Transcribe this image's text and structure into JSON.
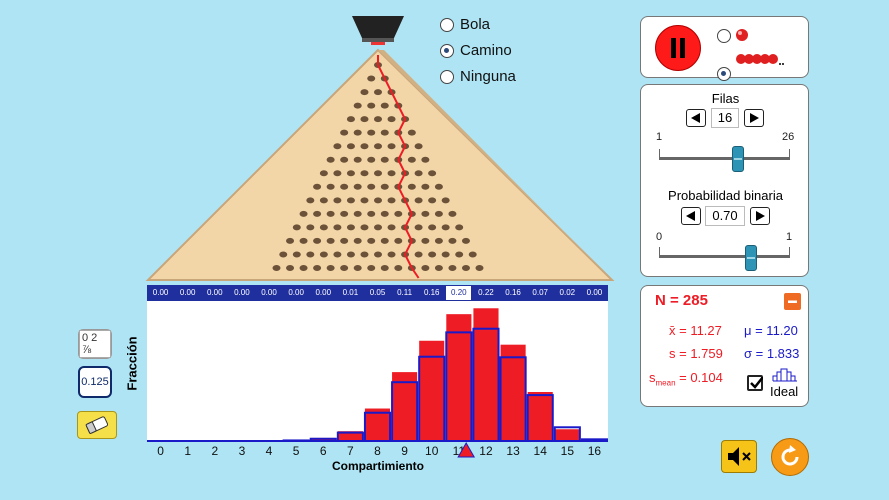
{
  "path_options": {
    "items": [
      {
        "label": "Bola",
        "selected": false
      },
      {
        "label": "Camino",
        "selected": true
      },
      {
        "label": "Ninguna",
        "selected": false
      }
    ]
  },
  "board": {
    "rows": 16,
    "color": "#f3d6a8"
  },
  "fractions": [
    "0.00",
    "0.00",
    "0.00",
    "0.00",
    "0.00",
    "0.00",
    "0.00",
    "0.01",
    "0.05",
    "0.11",
    "0.16",
    "0.20",
    "0.22",
    "0.16",
    "0.07",
    "0.02",
    "0.00"
  ],
  "chart_data": {
    "type": "bar",
    "categories": [
      "0",
      "1",
      "2",
      "3",
      "4",
      "5",
      "6",
      "7",
      "8",
      "9",
      "10",
      "11",
      "12",
      "13",
      "14",
      "15",
      "16"
    ],
    "series": [
      {
        "name": "observed",
        "values": [
          0,
          0,
          0,
          0,
          0,
          0.003,
          0.011,
          0.035,
          0.116,
          0.246,
          0.358,
          0.453,
          0.474,
          0.344,
          0.175,
          0.042,
          0.007
        ],
        "color": "#ee1c25"
      },
      {
        "name": "ideal",
        "values": [
          0,
          0,
          0,
          0,
          0,
          0.002,
          0.008,
          0.03,
          0.101,
          0.21,
          0.301,
          0.388,
          0.401,
          0.299,
          0.164,
          0.049,
          0.006
        ],
        "color": "#1a1ac8"
      }
    ],
    "xlabel": "Compartimiento",
    "ylabel": "Fracción",
    "mean_marker": 11.27
  },
  "controls": {
    "ball_mode": "many",
    "playing": true
  },
  "rows_control": {
    "label": "Filas",
    "value": "16",
    "min": "1",
    "max": "26",
    "min_num": 1,
    "max_num": 26,
    "current": 16
  },
  "prob_control": {
    "label": "Probabilidad binaria",
    "value": "0.70",
    "min": "0",
    "max": "1",
    "min_num": 0,
    "max_num": 1,
    "current": 0.7
  },
  "stats": {
    "n_label": "N = 285",
    "xbar": "x̄ = 11.27",
    "mu": "μ = 11.20",
    "s": "s = 1.759",
    "sigma": "σ = 1.833",
    "smean_prefix": "s",
    "smean_sub": "mean",
    "smean_value": " = 0.104",
    "ideal_label": "Ideal",
    "ideal_checked": true
  },
  "left_buttons": {
    "counter_value": "0.125",
    "counter_toggle": "0 2 ⅞"
  },
  "colors": {
    "background": "#aee4f3",
    "observed": "#ee1c25",
    "ideal_outline": "#1a1ac8",
    "header": "#1f2f9e",
    "path": "#ee1c25",
    "accent": "#f6c318"
  }
}
